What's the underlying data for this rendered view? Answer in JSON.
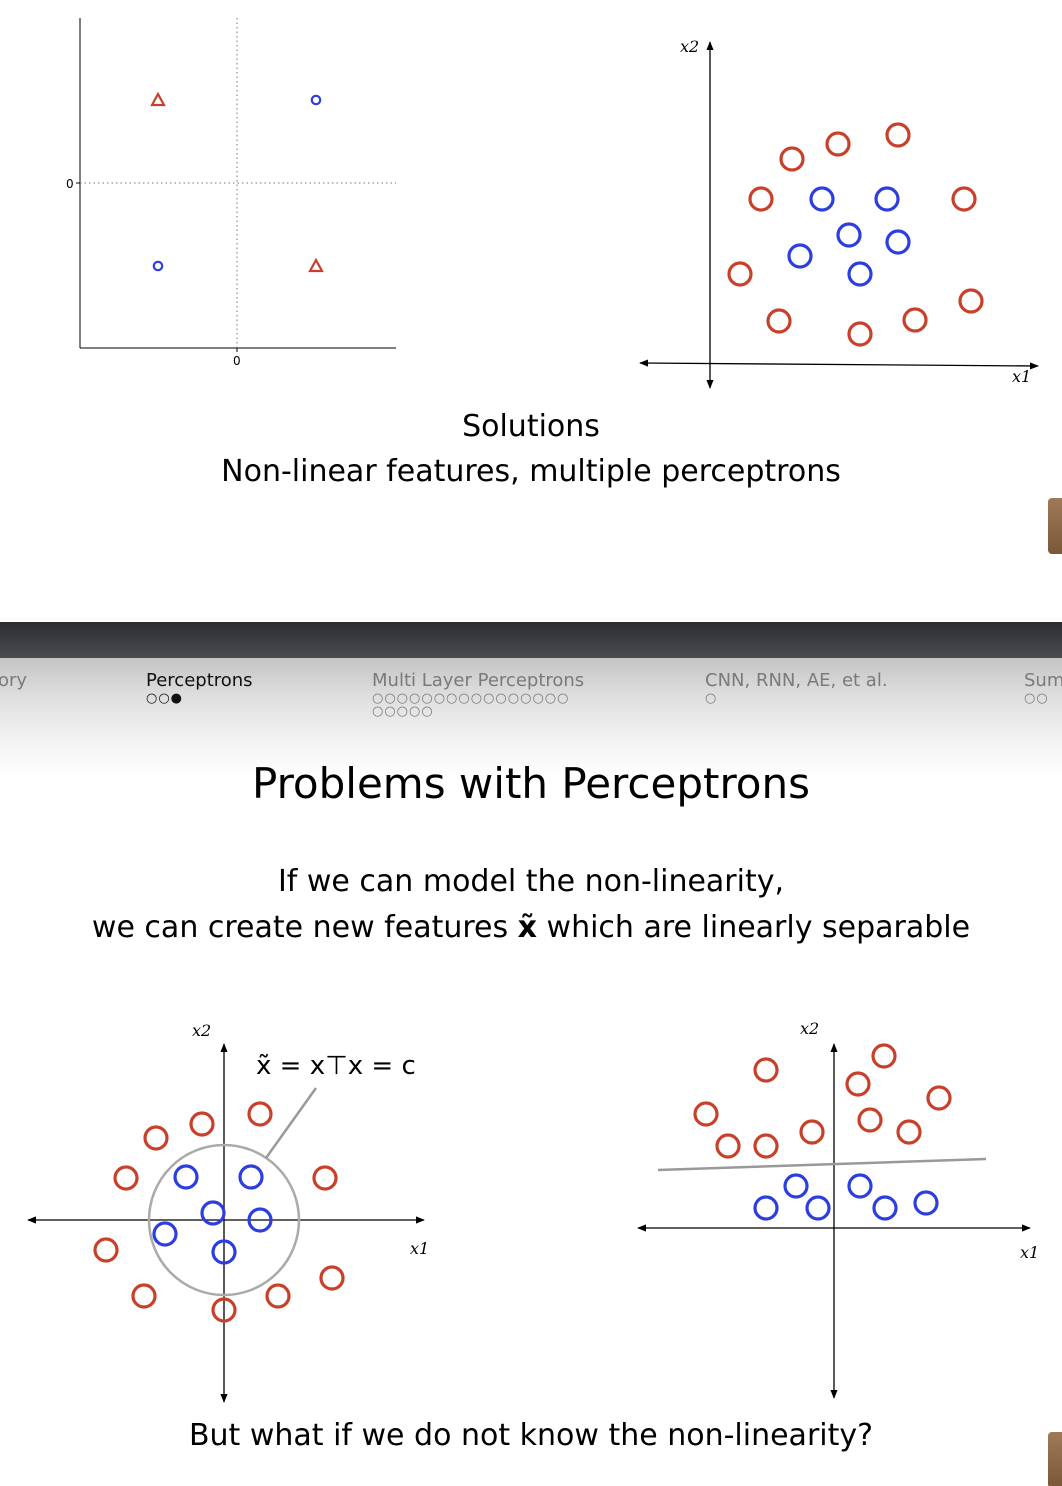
{
  "top_slide": {
    "caption_line1": "Solutions",
    "caption_line2": "Non-linear features, multiple perceptrons",
    "xor_plot": {
      "x_tick_label": "0",
      "y_tick_label": "0",
      "points": [
        {
          "x": -1,
          "y": 1,
          "class": "triangle"
        },
        {
          "x": 1,
          "y": 1,
          "class": "circle"
        },
        {
          "x": -1,
          "y": -1,
          "class": "circle"
        },
        {
          "x": 1,
          "y": -1,
          "class": "triangle"
        }
      ]
    },
    "cluster_plot": {
      "x_axis_label": "x1",
      "y_axis_label": "x2"
    }
  },
  "nav": {
    "sections": [
      {
        "label": "ory",
        "dots": "",
        "active": false
      },
      {
        "label": "Perceptrons",
        "dots": "○○●",
        "active": true
      },
      {
        "label": "Multi Layer Perceptrons",
        "dots": "○○○○○○○○○○○○○○○○",
        "dots2": "○○○○○",
        "active": false
      },
      {
        "label": "CNN, RNN, AE, et al.",
        "dots": "○",
        "active": false
      },
      {
        "label": "Sum",
        "dots": "○○",
        "active": false
      }
    ]
  },
  "bottom_slide": {
    "title": "Problems with Perceptrons",
    "text_line1": "If we can model the non-linearity,",
    "text_line2_a": "we can create new features ",
    "text_line2_feature": "x̃",
    "text_line2_b": " which are linearly separable",
    "left_plot": {
      "x_axis_label": "x1",
      "y_axis_label": "x2",
      "equation": "x̃ = x⊤x = c"
    },
    "right_plot": {
      "x_axis_label": "x1",
      "y_axis_label": "x2"
    },
    "footer_question": "But what if we do not know the non-linearity?"
  },
  "colors": {
    "red_class": "#c8402a",
    "blue_class": "#2c3ee0",
    "boundary": "#999999",
    "nav_active": "#111111",
    "nav_inactive": "#7a7a7a"
  }
}
